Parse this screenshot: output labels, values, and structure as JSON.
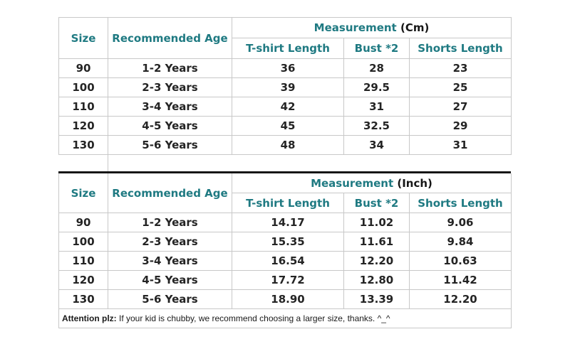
{
  "page": {
    "background": "#ffffff"
  },
  "colors": {
    "header_teal": "#1f7a82",
    "unit_black": "#161616",
    "data_text": "#242424",
    "border_gray": "#c8c8c8",
    "divider_black": "#161616"
  },
  "headers": {
    "size": "Size",
    "age": "Recommended Age",
    "tshirt": "T-shirt Length",
    "bust": "Bust *2",
    "shorts": "Shorts Length"
  },
  "tables": [
    {
      "name": "measurement-cm",
      "measurement_label": "Measurement",
      "unit_label": "(Cm)",
      "rows": [
        [
          "90",
          "1-2 Years",
          "36",
          "28",
          "23"
        ],
        [
          "100",
          "2-3 Years",
          "39",
          "29.5",
          "25"
        ],
        [
          "110",
          "3-4 Years",
          "42",
          "31",
          "27"
        ],
        [
          "120",
          "4-5 Years",
          "45",
          "32.5",
          "29"
        ],
        [
          "130",
          "5-6 Years",
          "48",
          "34",
          "31"
        ]
      ]
    },
    {
      "name": "measurement-inch",
      "measurement_label": "Measurement",
      "unit_label": "(Inch)",
      "rows": [
        [
          "90",
          "1-2 Years",
          "14.17",
          "11.02",
          "9.06"
        ],
        [
          "100",
          "2-3 Years",
          "15.35",
          "11.61",
          "9.84"
        ],
        [
          "110",
          "3-4 Years",
          "16.54",
          "12.20",
          "10.63"
        ],
        [
          "120",
          "4-5 Years",
          "17.72",
          "12.80",
          "11.42"
        ],
        [
          "130",
          "5-6 Years",
          "18.90",
          "13.39",
          "12.20"
        ]
      ]
    }
  ],
  "note": {
    "bold": "Attention plz:",
    "text": " If your kid is chubby, we recommend choosing a larger size, thanks. ^_^"
  }
}
